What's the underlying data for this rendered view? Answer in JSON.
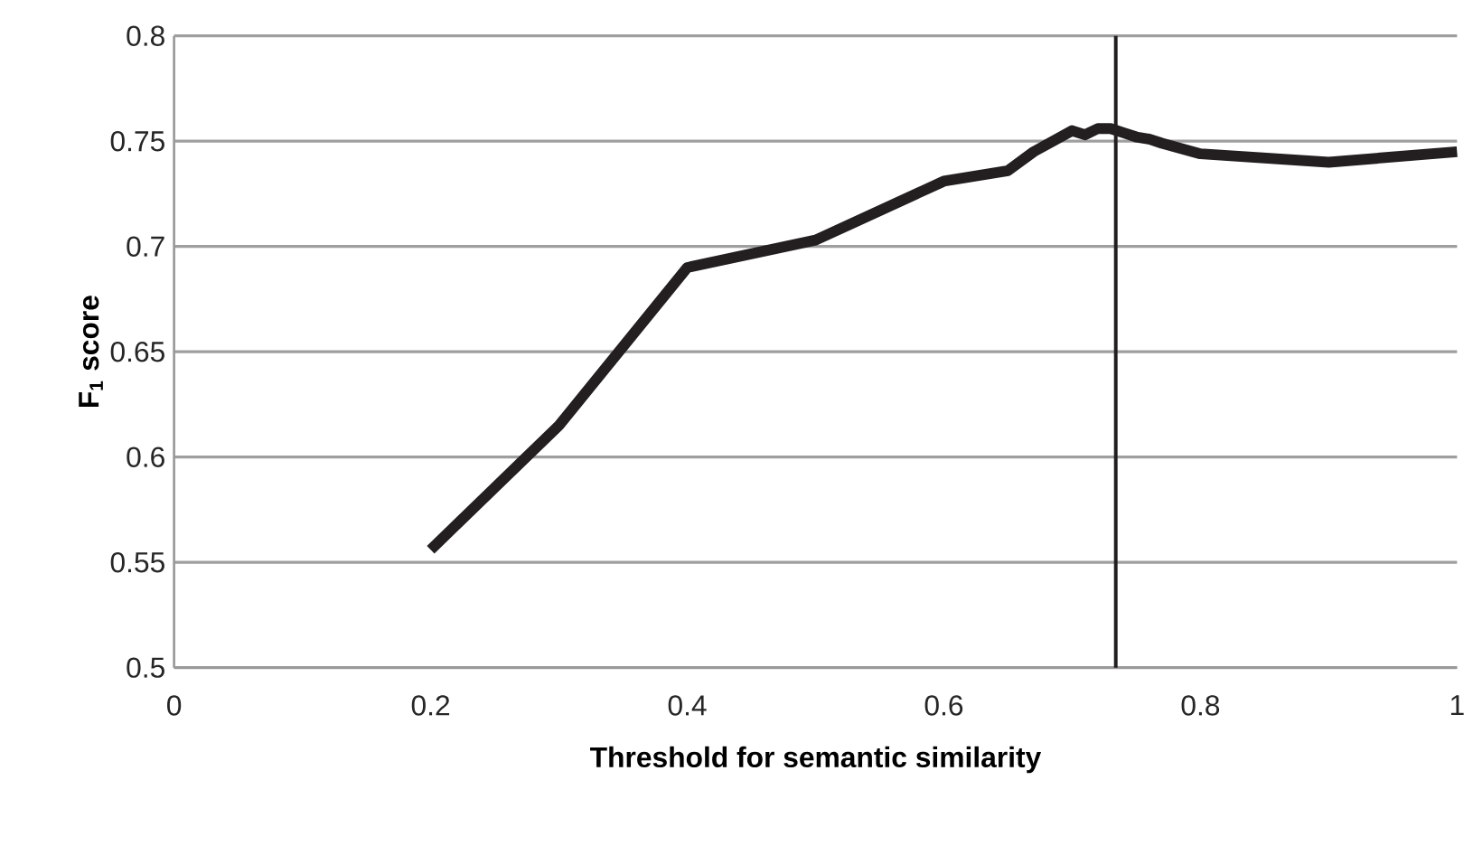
{
  "chart_data": {
    "type": "line",
    "xlabel": "Threshold for semantic similarity",
    "ylabel": "F$_{1}$ score",
    "x": [
      0.2,
      0.3,
      0.4,
      0.5,
      0.6,
      0.65,
      0.67,
      0.7,
      0.71,
      0.72,
      0.73,
      0.74,
      0.75,
      0.76,
      0.77,
      0.8,
      0.9,
      1.0
    ],
    "series": [
      {
        "color": "#231f20",
        "values": [
          0.556,
          0.615,
          0.69,
          0.703,
          0.731,
          0.736,
          0.745,
          0.755,
          0.753,
          0.756,
          0.756,
          0.754,
          0.752,
          0.751,
          0.749,
          0.744,
          0.74,
          0.745
        ]
      }
    ],
    "xlim": [
      0,
      1
    ],
    "ylim": [
      0.5,
      0.8
    ],
    "xticks": [
      0,
      0.2,
      0.4,
      0.6,
      0.8,
      1
    ],
    "yticks": [
      0.5,
      0.55,
      0.6,
      0.65,
      0.7,
      0.75,
      0.8
    ],
    "grid": "y",
    "ref_lines": [
      {
        "axis": "x",
        "value": 0.734,
        "color": "#231f20"
      }
    ]
  }
}
